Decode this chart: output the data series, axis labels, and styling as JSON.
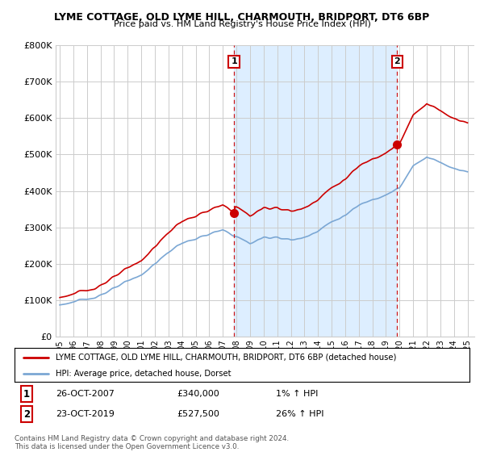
{
  "title1": "LYME COTTAGE, OLD LYME HILL, CHARMOUTH, BRIDPORT, DT6 6BP",
  "title2": "Price paid vs. HM Land Registry's House Price Index (HPI)",
  "ylim": [
    0,
    800000
  ],
  "xlim_start": 1994.7,
  "xlim_end": 2025.5,
  "purchase1_x": 2007.82,
  "purchase1_y": 340000,
  "purchase2_x": 2019.82,
  "purchase2_y": 527500,
  "legend_line1": "LYME COTTAGE, OLD LYME HILL, CHARMOUTH, BRIDPORT, DT6 6BP (detached house)",
  "legend_line2": "HPI: Average price, detached house, Dorset",
  "footer": "Contains HM Land Registry data © Crown copyright and database right 2024.\nThis data is licensed under the Open Government Licence v3.0.",
  "line_color_red": "#cc0000",
  "line_color_blue": "#7ba7d4",
  "dashed_color": "#cc0000",
  "fill_color": "#ddeeff",
  "background_color": "#ffffff",
  "grid_color": "#cccccc"
}
